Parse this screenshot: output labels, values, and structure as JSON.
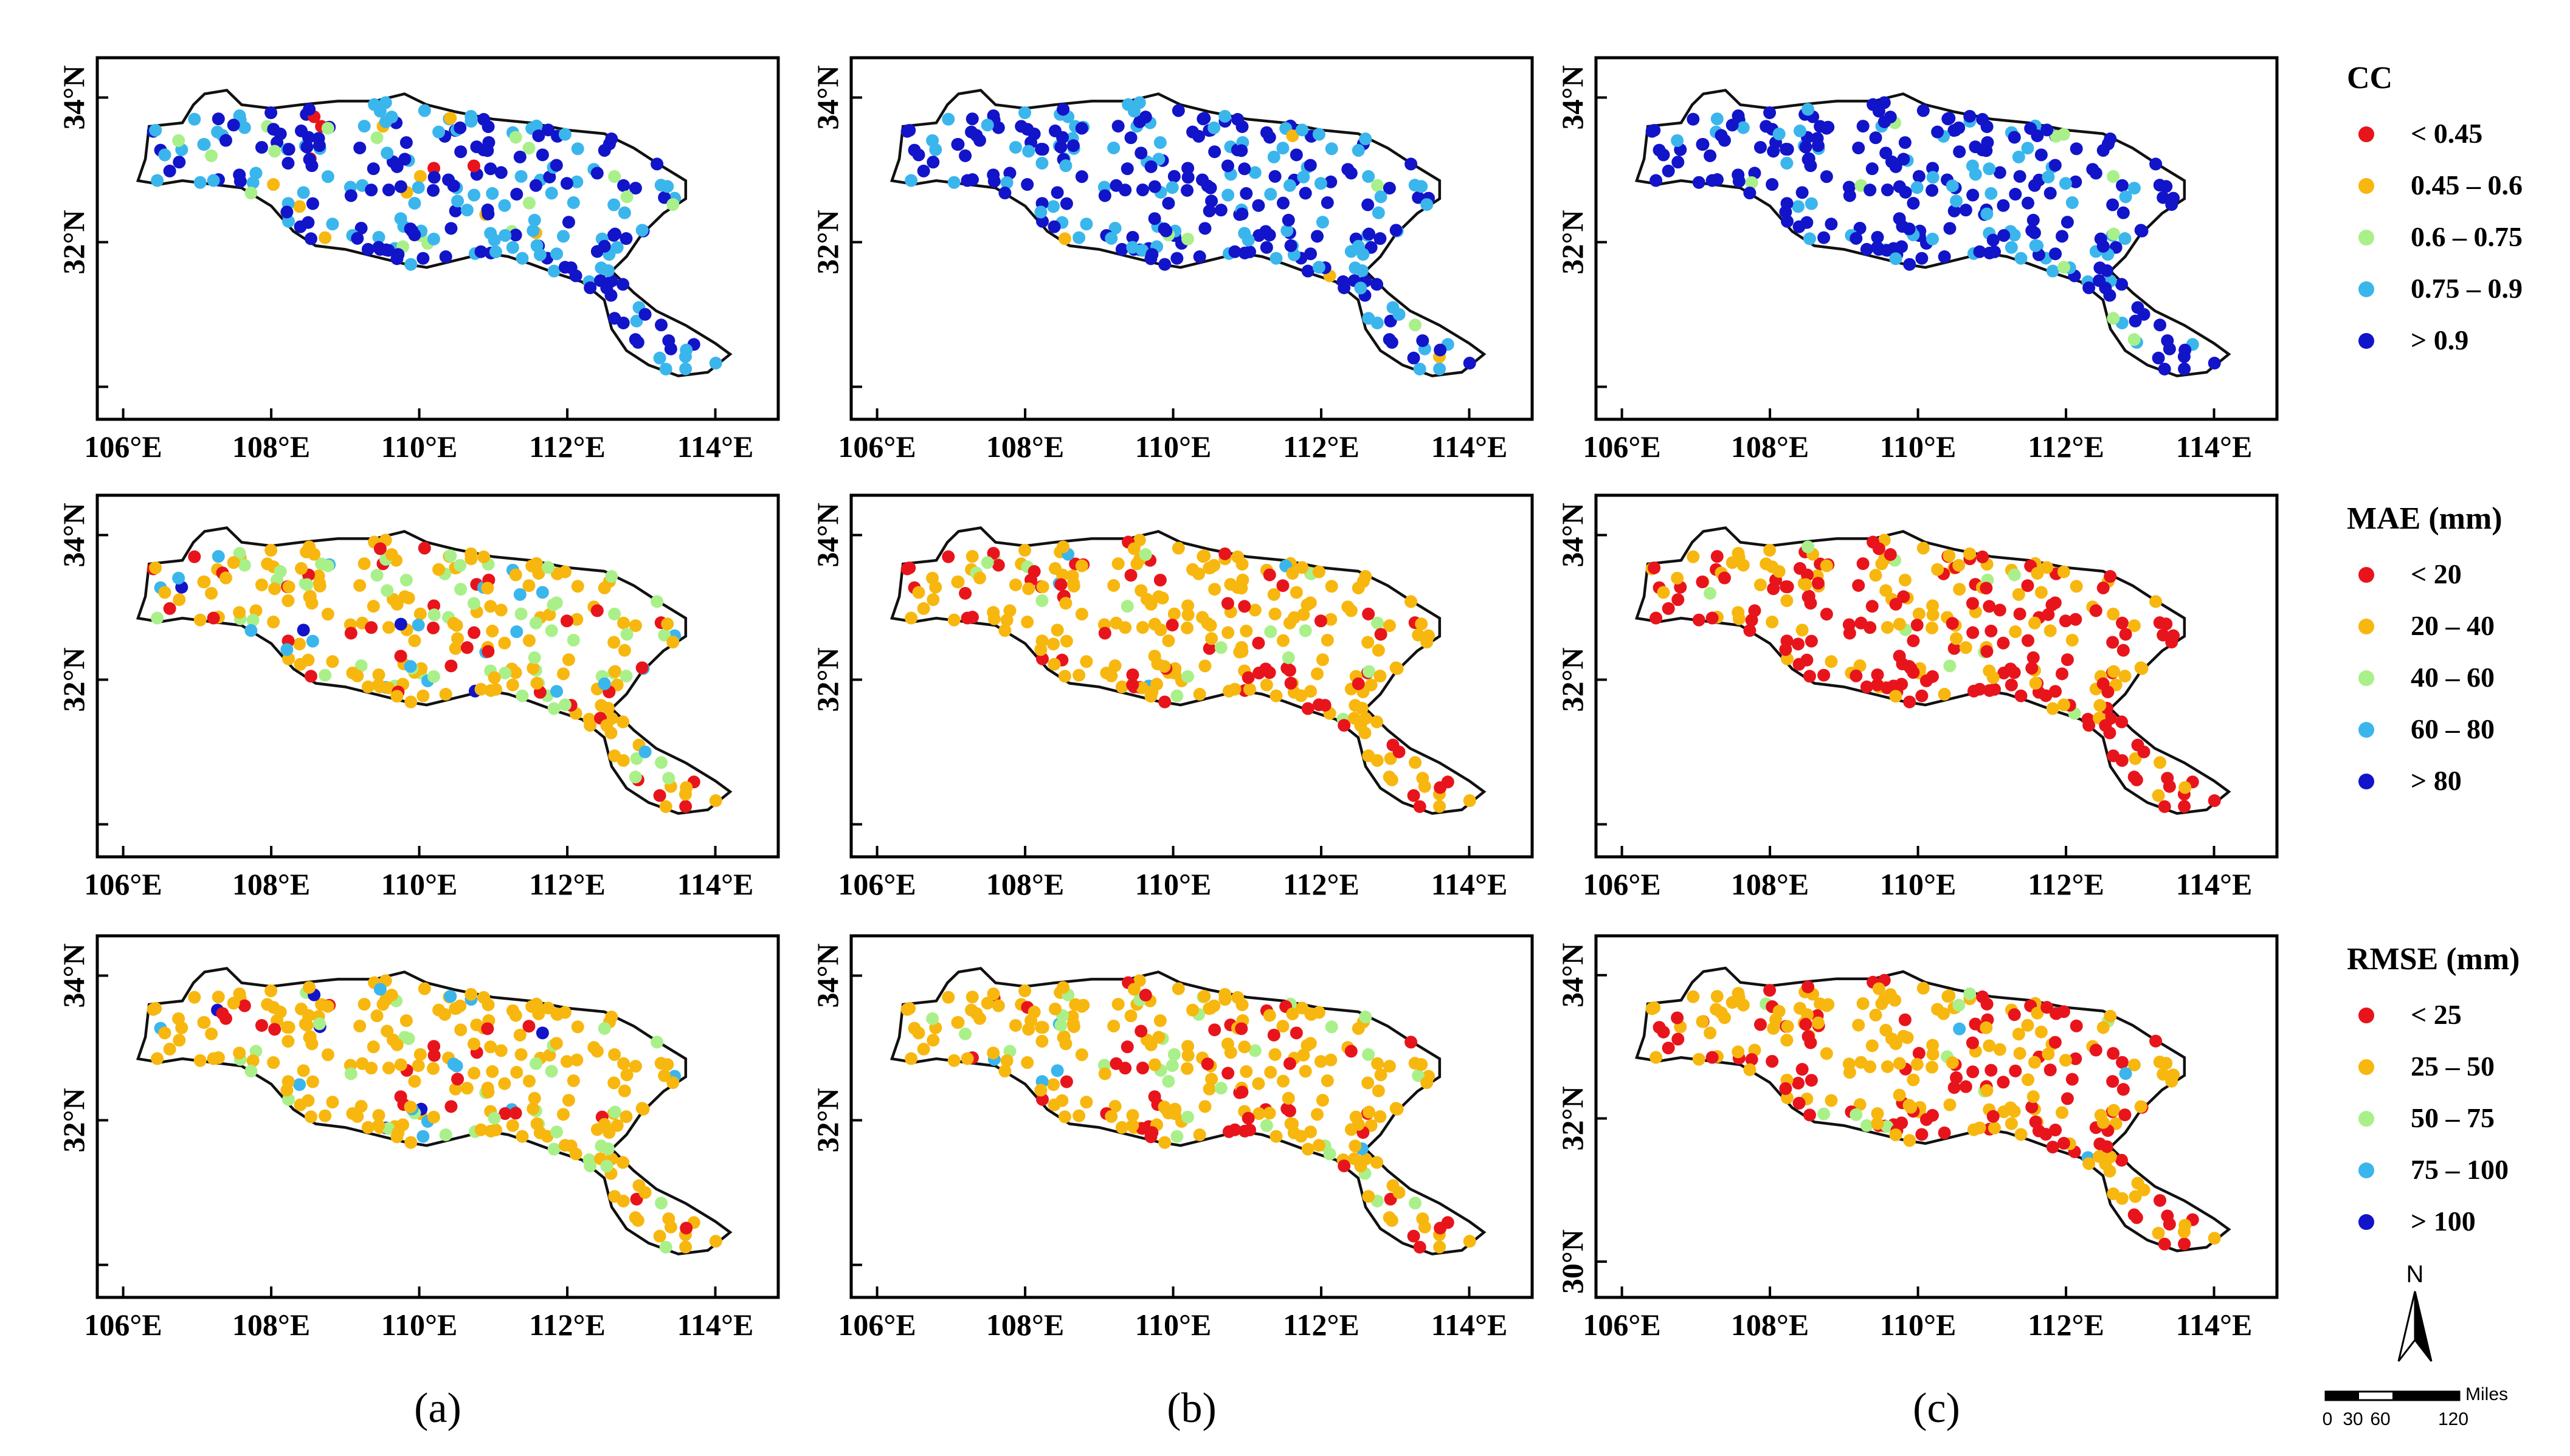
{
  "axes": {
    "x_ticks": [
      "106°E",
      "108°E",
      "110°E",
      "112°E",
      "114°E"
    ],
    "y_ticks_top": [
      "34°N",
      "32°N"
    ],
    "y_ticks_bottom_c": [
      "34°N",
      "32°N",
      "30°N"
    ]
  },
  "columns": [
    "(a)",
    "(b)",
    "(c)"
  ],
  "legends": [
    {
      "title": "CC",
      "labels": [
        "< 0.45",
        "0.45 – 0.6",
        "0.6 – 0.75",
        "0.75 – 0.9",
        "> 0.9"
      ]
    },
    {
      "title": "MAE (mm)",
      "labels": [
        "< 20",
        "20 – 40",
        "40 – 60",
        "60 – 80",
        "> 80"
      ]
    },
    {
      "title": "RMSE (mm)",
      "labels": [
        "< 25",
        "25 – 50",
        "50 – 75",
        "75 – 100",
        "> 100"
      ]
    }
  ],
  "class_colors": [
    "#e8141c",
    "#f7b70f",
    "#a9f08a",
    "#3ab6ec",
    "#1214c9"
  ],
  "north_label": "N",
  "scale_bar": {
    "unit": "Miles",
    "labels": [
      "0",
      "30",
      "60",
      "120"
    ]
  },
  "rows": [
    "CC",
    "MAE",
    "RMSE"
  ],
  "station_class_mix": {
    "CC": [
      [
        0.03,
        0.04,
        0.05,
        0.38,
        0.5
      ],
      [
        0.0,
        0.01,
        0.02,
        0.32,
        0.65
      ],
      [
        0.0,
        0.0,
        0.02,
        0.22,
        0.76
      ]
    ],
    "MAE": [
      [
        0.14,
        0.58,
        0.18,
        0.08,
        0.02
      ],
      [
        0.26,
        0.66,
        0.07,
        0.01,
        0.0
      ],
      [
        0.55,
        0.42,
        0.03,
        0.0,
        0.0
      ]
    ],
    "RMSE": [
      [
        0.08,
        0.7,
        0.15,
        0.05,
        0.02
      ],
      [
        0.18,
        0.7,
        0.1,
        0.02,
        0.0
      ],
      [
        0.35,
        0.6,
        0.04,
        0.01,
        0.0
      ]
    ]
  }
}
